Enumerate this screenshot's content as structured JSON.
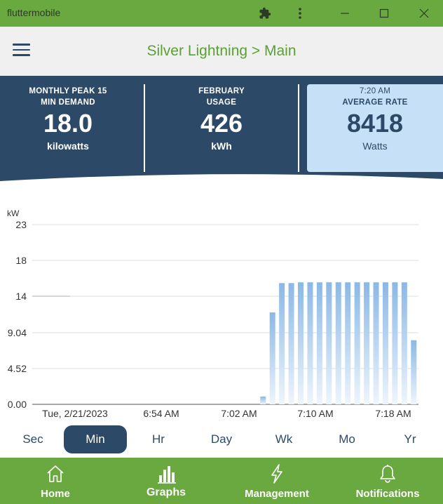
{
  "window": {
    "title": "fluttermobile",
    "icons": [
      "puzzle-icon",
      "more-vert-icon",
      "minimize-icon",
      "maximize-icon",
      "close-icon"
    ]
  },
  "appbar": {
    "menu_icon": "hamburger-menu-icon",
    "title": "Silver Lightning > Main"
  },
  "stats": [
    {
      "label_line1": "MONTHLY PEAK 15",
      "label_line2": "MIN DEMAND",
      "value": "18.0",
      "unit": "kilowatts"
    },
    {
      "label_line1": "FEBRUARY",
      "label_line2": "USAGE",
      "value": "426",
      "unit": "kWh"
    },
    {
      "label_line1": "7:20 AM",
      "label_line2": "AVERAGE RATE",
      "value": "8418",
      "unit": "Watts"
    }
  ],
  "colors": {
    "titlebar": "#6aa840",
    "banner": "#2c4a68",
    "accent_green": "#5aa035",
    "bar_top": "#8ab8e6",
    "selected_stat": "#c6e0f7"
  },
  "chart_data": {
    "type": "bar",
    "ylabel": "kW",
    "yticks": [
      "23",
      "18",
      "14",
      "9.04",
      "4.52",
      "0.00"
    ],
    "ytick_values": [
      23,
      18,
      14,
      9.04,
      4.52,
      0
    ],
    "xticks": [
      "Tue, 2/21/2023",
      "6:54 AM",
      "7:02 AM",
      "7:10 AM",
      "7:18 AM"
    ],
    "ylim": [
      0,
      23
    ],
    "grid": true,
    "peak_line_value": 14.0,
    "values": [
      0.0,
      0.0,
      0.0,
      0.0,
      0.0,
      0.0,
      0.0,
      0.0,
      0.0,
      0.0,
      0.0,
      0.0,
      0.0,
      0.0,
      0.0,
      0.0,
      0.0,
      0.0,
      0.0,
      0.0,
      0.0,
      0.0,
      0.0,
      0.0,
      1.0,
      11.9,
      15.7,
      15.7,
      15.8,
      15.8,
      15.8,
      15.8,
      15.8,
      15.8,
      15.8,
      15.8,
      15.8,
      15.8,
      15.8,
      15.8,
      8.3
    ]
  },
  "ranges": {
    "items": [
      "Sec",
      "Min",
      "Hr",
      "Day",
      "Wk",
      "Mo",
      "Yr"
    ],
    "selected": "Min"
  },
  "bottomnav": {
    "items": [
      {
        "label": "Home",
        "icon": "home-icon"
      },
      {
        "label": "Graphs",
        "icon": "bar-chart-icon"
      },
      {
        "label": "Management",
        "icon": "bolt-icon"
      },
      {
        "label": "Notifications",
        "icon": "bell-icon"
      }
    ],
    "selected": "Graphs"
  }
}
